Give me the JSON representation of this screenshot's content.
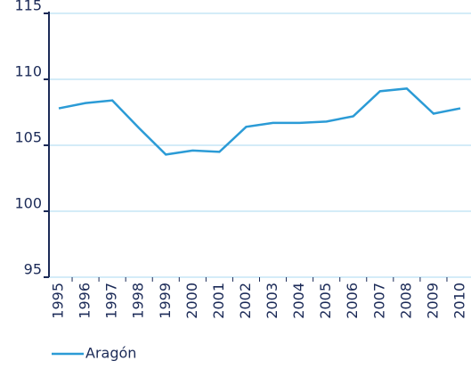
{
  "chart_data": {
    "type": "line",
    "categories": [
      "1995",
      "1996",
      "1997",
      "1998",
      "1999",
      "2000",
      "2001",
      "2002",
      "2003",
      "2004",
      "2005",
      "2006",
      "2007",
      "2008",
      "2009",
      "2010"
    ],
    "series": [
      {
        "name": "Aragón",
        "color": "#2b9bd6",
        "values": [
          107.8,
          108.2,
          108.4,
          106.3,
          104.3,
          104.6,
          104.5,
          106.4,
          106.7,
          106.7,
          106.8,
          107.2,
          109.1,
          109.3,
          107.4,
          107.8
        ]
      }
    ],
    "ylim": [
      95,
      115
    ],
    "yticks": [
      95,
      100,
      105,
      110,
      115
    ],
    "grid": true,
    "legend": "bottom-left"
  }
}
